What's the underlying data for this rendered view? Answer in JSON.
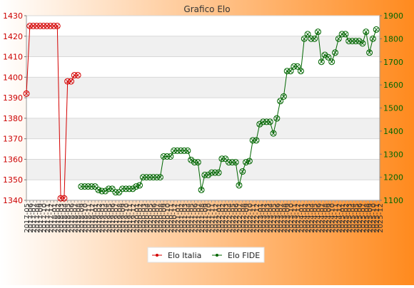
{
  "chart_data": {
    "type": "line",
    "title": "Grafico Elo",
    "colors": {
      "background_left": "#ffffff",
      "background_right": "#ff8a1e",
      "band": "#f0f0f0",
      "left_axis": "#cc0000",
      "right_axis": "#006600",
      "series_italia": "#d40000",
      "series_fide": "#006600"
    },
    "grid": true,
    "legend_position": "bottom",
    "y_left": {
      "min": 1340,
      "max": 1430,
      "ticks": [
        1340,
        1350,
        1360,
        1370,
        1380,
        1390,
        1400,
        1410,
        1420,
        1430
      ]
    },
    "y_right": {
      "min": 1100,
      "max": 1900,
      "ticks": [
        1100,
        1200,
        1300,
        1400,
        1500,
        1600,
        1700,
        1800,
        1900
      ]
    },
    "x_labels": [
      "2017-05",
      "2017-06",
      "2017-07",
      "2017-08",
      "2017-09",
      "2017-10",
      "2017-11",
      "2017-12",
      "2018-01",
      "2018-02",
      "2018-03",
      "2018-04",
      "2018-05",
      "2018-06",
      "2018-07",
      "2018-08",
      "2018-09",
      "2018-10",
      "2018-11",
      "2018-12",
      "2019-01",
      "2019-02",
      "2019-03",
      "2019-04",
      "2019-05",
      "2019-06",
      "2019-07",
      "2019-08",
      "2019-09",
      "2019-10",
      "2019-11",
      "2019-12",
      "2020-01",
      "2020-02",
      "2020-03",
      "2020-04",
      "2020-05",
      "2020-06",
      "2020-07",
      "2020-08",
      "2020-09",
      "2020-10",
      "2020-11",
      "2020-12",
      "2021-01",
      "2021-02",
      "2021-03",
      "2021-04",
      "2021-05",
      "2021-06",
      "2021-07",
      "2021-08",
      "2021-09",
      "2021-10",
      "2021-11",
      "2021-12",
      "2022-01",
      "2022-02",
      "2022-03",
      "2022-04",
      "2022-05",
      "2022-06",
      "2022-07",
      "2022-08",
      "2022-09",
      "2022-10",
      "2022-11",
      "2022-12",
      "2023-01",
      "2023-02",
      "2023-03",
      "2023-04",
      "2023-05",
      "2023-06",
      "2023-07",
      "2023-08",
      "2023-09",
      "2023-10",
      "2023-11",
      "2023-12",
      "2024-01",
      "2024-02",
      "2024-03",
      "2024-04",
      "2024-05",
      "2024-06",
      "2024-07",
      "2024-08",
      "2024-09",
      "2024-10",
      "2024-11",
      "2024-12",
      "2025-01",
      "2025-02",
      "2025-03",
      "2025-04",
      "2025-05",
      "2025-06",
      "2025-07",
      "2025-08",
      "2025-09",
      "2025-10",
      "2025-11",
      "2025-12"
    ],
    "series": [
      {
        "name": "Elo Italia",
        "axis": "left",
        "values": [
          1392,
          1425,
          1425,
          1425,
          1425,
          1425,
          1425,
          1425,
          1425,
          1425,
          1341,
          1341,
          1398,
          1398,
          1401,
          1401
        ]
      },
      {
        "name": "Elo FIDE",
        "axis": "right",
        "start_index": 16,
        "values": [
          1160,
          1160,
          1160,
          1160,
          1160,
          1145,
          1140,
          1140,
          1150,
          1150,
          1135,
          1135,
          1150,
          1150,
          1150,
          1150,
          1160,
          1165,
          1200,
          1200,
          1200,
          1200,
          1200,
          1200,
          1290,
          1290,
          1290,
          1315,
          1315,
          1315,
          1315,
          1315,
          1275,
          1265,
          1265,
          1145,
          1210,
          1210,
          1220,
          1220,
          1220,
          1280,
          1280,
          1265,
          1265,
          1265,
          1165,
          1225,
          1265,
          1270,
          1360,
          1360,
          1430,
          1440,
          1440,
          1440,
          1390,
          1455,
          1530,
          1550,
          1660,
          1660,
          1680,
          1680,
          1660,
          1800,
          1820,
          1800,
          1800,
          1830,
          1700,
          1730,
          1720,
          1700,
          1740,
          1800,
          1820,
          1820,
          1790,
          1790,
          1790,
          1790,
          1780,
          1830,
          1740,
          1800,
          1840
        ]
      }
    ]
  }
}
